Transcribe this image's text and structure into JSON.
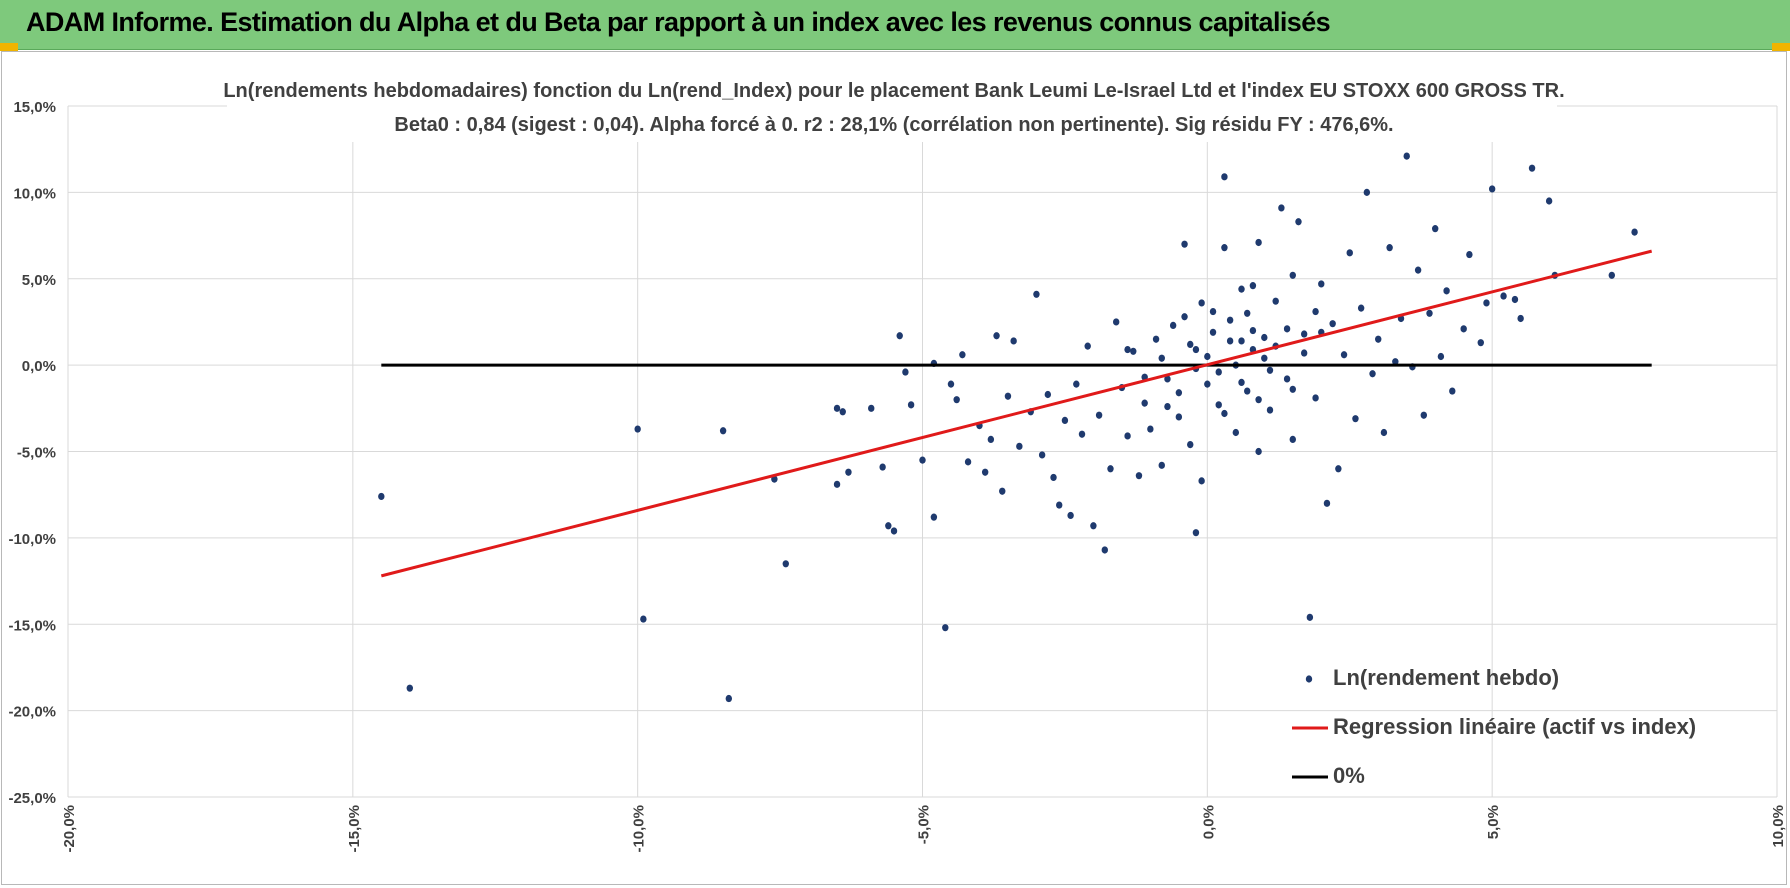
{
  "header": {
    "title": "ADAM Informe. Estimation du Alpha et du Beta par rapport à un index avec les revenus connus capitalisés"
  },
  "colors": {
    "header_bg": "#7ec97c",
    "points": "#1f3a6e",
    "regression": "#e01a1a",
    "zero_line": "#000000",
    "grid": "#d9d9d9"
  },
  "chart_data": {
    "type": "scatter",
    "title": "Ln(rendements hebdomadaires) fonction du Ln(rend_Index) pour le placement Bank Leumi Le-Israel Ltd et l'index EU STOXX 600 GROSS TR.",
    "subtitle": "Beta0 : 0,84 (sigest : 0,04).  Alpha forcé à 0. r2 : 28,1% (corrélation non pertinente). Sig résidu FY : 476,6%.",
    "xlabel": "",
    "ylabel": "",
    "xlim": [
      -20,
      10
    ],
    "ylim": [
      -25,
      15
    ],
    "x_ticks": [
      -20,
      -15,
      -10,
      -5,
      0,
      5,
      10
    ],
    "x_tick_labels": [
      "-20,0%",
      "-15,0%",
      "-10,0%",
      "-5,0%",
      "0,0%",
      "5,0%",
      "10,0%"
    ],
    "y_ticks": [
      15,
      10,
      5,
      0,
      -5,
      -10,
      -15,
      -20,
      -25
    ],
    "y_tick_labels": [
      "15,0%",
      "10,0%",
      "5,0%",
      "0,0%",
      "-5,0%",
      "-10,0%",
      "-15,0%",
      "-20,0%",
      "-25,0%"
    ],
    "grid": true,
    "legend_position": "bottom-right",
    "series": [
      {
        "name": "Ln(rendement hebdo)",
        "kind": "points",
        "points": [
          [
            -14.5,
            -7.6
          ],
          [
            -14.0,
            -18.7
          ],
          [
            -10.0,
            -3.7
          ],
          [
            -9.9,
            -14.7
          ],
          [
            -8.5,
            -3.8
          ],
          [
            -8.4,
            -19.3
          ],
          [
            -7.6,
            -6.6
          ],
          [
            -7.4,
            -11.5
          ],
          [
            -6.5,
            -2.5
          ],
          [
            -6.5,
            -6.9
          ],
          [
            -6.4,
            -2.7
          ],
          [
            -6.3,
            -6.2
          ],
          [
            -5.9,
            -2.5
          ],
          [
            -5.7,
            -5.9
          ],
          [
            -5.6,
            -9.3
          ],
          [
            -5.5,
            -9.6
          ],
          [
            -5.4,
            1.7
          ],
          [
            -5.3,
            -0.4
          ],
          [
            -5.2,
            -2.3
          ],
          [
            -5.0,
            -5.5
          ],
          [
            -4.8,
            0.1
          ],
          [
            -4.8,
            -8.8
          ],
          [
            -4.6,
            -15.2
          ],
          [
            -4.5,
            -1.1
          ],
          [
            -4.4,
            -2.0
          ],
          [
            -4.3,
            0.6
          ],
          [
            -4.2,
            -5.6
          ],
          [
            -4.0,
            -3.5
          ],
          [
            -3.9,
            -6.2
          ],
          [
            -3.8,
            -4.3
          ],
          [
            -3.7,
            1.7
          ],
          [
            -3.6,
            -7.3
          ],
          [
            -3.5,
            -1.8
          ],
          [
            -3.4,
            1.4
          ],
          [
            -3.3,
            -4.7
          ],
          [
            -3.1,
            -2.7
          ],
          [
            -3.0,
            4.1
          ],
          [
            -2.9,
            -5.2
          ],
          [
            -2.8,
            -1.7
          ],
          [
            -2.7,
            -6.5
          ],
          [
            -2.6,
            -8.1
          ],
          [
            -2.5,
            -3.2
          ],
          [
            -2.4,
            -8.7
          ],
          [
            -2.3,
            -1.1
          ],
          [
            -2.2,
            -4.0
          ],
          [
            -2.1,
            1.1
          ],
          [
            -2.0,
            -9.3
          ],
          [
            -1.9,
            -2.9
          ],
          [
            -1.8,
            -10.7
          ],
          [
            -1.7,
            -6.0
          ],
          [
            -1.6,
            2.5
          ],
          [
            -1.5,
            -1.3
          ],
          [
            -1.4,
            -4.1
          ],
          [
            -1.3,
            0.8
          ],
          [
            -1.2,
            -6.4
          ],
          [
            -1.1,
            -2.2
          ],
          [
            -1.0,
            -3.7
          ],
          [
            -0.9,
            1.5
          ],
          [
            -0.8,
            -5.8
          ],
          [
            -0.7,
            -0.8
          ],
          [
            -0.6,
            2.3
          ],
          [
            -0.5,
            -3.0
          ],
          [
            -0.4,
            7.0
          ],
          [
            -0.3,
            -4.6
          ],
          [
            -0.2,
            0.9
          ],
          [
            -0.1,
            -6.7
          ],
          [
            -0.2,
            -9.7
          ],
          [
            0.1,
            3.1
          ],
          [
            0.2,
            -2.3
          ],
          [
            0.3,
            10.9
          ],
          [
            0.3,
            6.8
          ],
          [
            0.4,
            1.4
          ],
          [
            0.5,
            -3.9
          ],
          [
            0.6,
            4.4
          ],
          [
            0.7,
            -1.5
          ],
          [
            0.8,
            2.0
          ],
          [
            0.9,
            -5.0
          ],
          [
            0.9,
            7.1
          ],
          [
            1.0,
            0.4
          ],
          [
            1.1,
            -2.6
          ],
          [
            1.2,
            3.7
          ],
          [
            1.3,
            9.1
          ],
          [
            1.4,
            -0.8
          ],
          [
            1.5,
            5.2
          ],
          [
            1.5,
            -4.3
          ],
          [
            1.6,
            8.3
          ],
          [
            1.7,
            1.8
          ],
          [
            1.8,
            -14.6
          ],
          [
            1.9,
            -1.9
          ],
          [
            2.0,
            4.7
          ],
          [
            2.1,
            -8.0
          ],
          [
            2.2,
            2.4
          ],
          [
            2.3,
            -6.0
          ],
          [
            2.4,
            0.6
          ],
          [
            2.5,
            6.5
          ],
          [
            2.6,
            -3.1
          ],
          [
            2.7,
            3.3
          ],
          [
            2.8,
            10.0
          ],
          [
            2.9,
            -0.5
          ],
          [
            3.0,
            1.5
          ],
          [
            3.1,
            -3.9
          ],
          [
            3.2,
            6.8
          ],
          [
            3.3,
            0.2
          ],
          [
            3.4,
            2.7
          ],
          [
            3.5,
            12.1
          ],
          [
            3.6,
            -0.1
          ],
          [
            3.7,
            5.5
          ],
          [
            3.8,
            -2.9
          ],
          [
            3.9,
            3.0
          ],
          [
            4.0,
            7.9
          ],
          [
            4.1,
            0.5
          ],
          [
            4.2,
            4.3
          ],
          [
            4.3,
            -1.5
          ],
          [
            4.5,
            2.1
          ],
          [
            4.6,
            6.4
          ],
          [
            4.8,
            1.3
          ],
          [
            4.9,
            3.6
          ],
          [
            5.0,
            10.2
          ],
          [
            5.2,
            4.0
          ],
          [
            5.4,
            3.8
          ],
          [
            5.5,
            2.7
          ],
          [
            5.7,
            11.4
          ],
          [
            6.0,
            9.5
          ],
          [
            6.1,
            5.2
          ],
          [
            7.1,
            5.2
          ],
          [
            7.5,
            7.7
          ],
          [
            0.0,
            0.5
          ],
          [
            0.2,
            -0.4
          ],
          [
            -0.3,
            1.2
          ],
          [
            0.4,
            2.6
          ],
          [
            0.6,
            -1.0
          ],
          [
            0.8,
            0.9
          ],
          [
            1.0,
            1.6
          ],
          [
            -0.5,
            -1.6
          ],
          [
            0.1,
            1.9
          ],
          [
            0.7,
            3.0
          ],
          [
            1.1,
            -0.3
          ],
          [
            -0.8,
            0.4
          ],
          [
            0.3,
            -2.8
          ],
          [
            1.4,
            2.1
          ],
          [
            -0.1,
            3.6
          ],
          [
            0.5,
            0.0
          ],
          [
            1.7,
            0.7
          ],
          [
            -1.1,
            -0.7
          ],
          [
            0.9,
            -2.0
          ],
          [
            1.2,
            1.1
          ],
          [
            -0.4,
            2.8
          ],
          [
            0.6,
            1.4
          ],
          [
            2.0,
            1.9
          ],
          [
            -0.7,
            -2.4
          ],
          [
            0.0,
            -1.1
          ],
          [
            1.5,
            -1.4
          ],
          [
            -0.2,
            -0.2
          ],
          [
            0.8,
            4.6
          ],
          [
            1.9,
            3.1
          ],
          [
            -1.4,
            0.9
          ]
        ]
      },
      {
        "name": "Regression linéaire (actif vs index)",
        "kind": "line",
        "points": [
          [
            -14.5,
            -12.2
          ],
          [
            7.8,
            6.6
          ]
        ]
      },
      {
        "name": "0%",
        "kind": "line",
        "points": [
          [
            -14.5,
            0
          ],
          [
            7.8,
            0
          ]
        ]
      }
    ]
  }
}
